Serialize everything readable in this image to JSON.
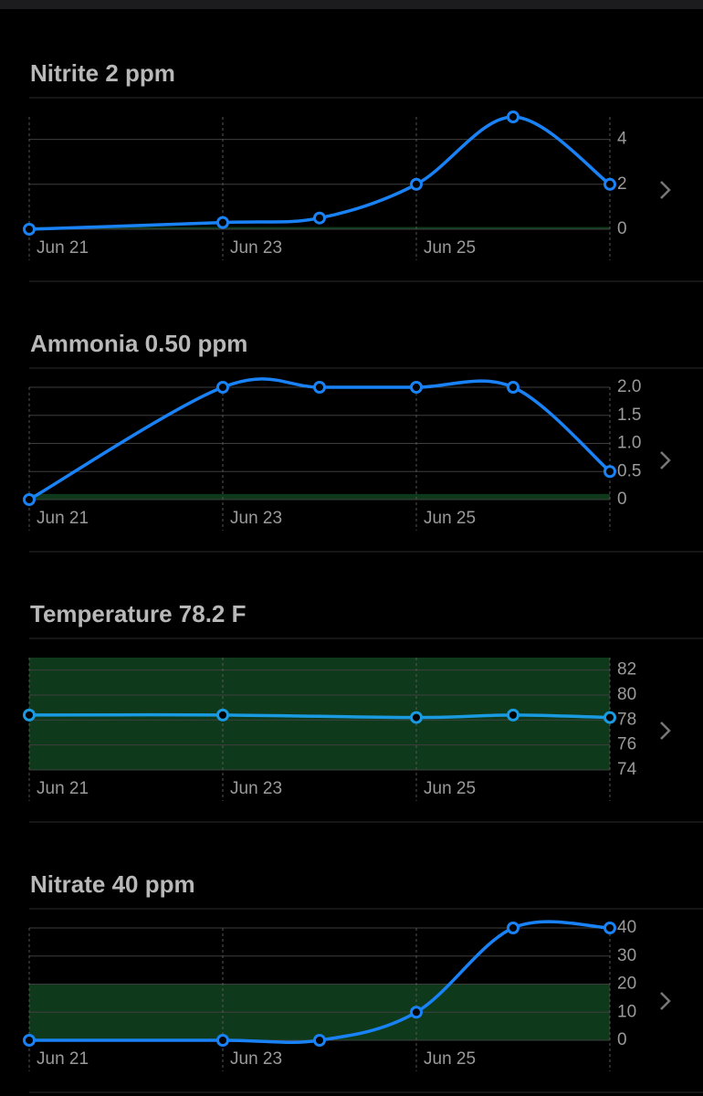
{
  "chart_data": [
    {
      "type": "line",
      "title": "Nitrite 2 ppm",
      "x": [
        "Jun 21",
        "Jun 23",
        "Jun 24",
        "Jun 25",
        "Jun 26",
        "Jun 27"
      ],
      "values": [
        0,
        0.3,
        0.5,
        2,
        5,
        2
      ],
      "color": "#1a82f7",
      "xlim": [
        "Jun 21",
        "Jun 27"
      ],
      "xticks": [
        "Jun 21",
        "Jun 23",
        "Jun 25"
      ],
      "ylim": [
        0,
        5
      ],
      "yticks": [
        0,
        2,
        4
      ],
      "band": [
        0,
        0.1
      ],
      "band_color": "#0e3a1b",
      "grid": true
    },
    {
      "type": "line",
      "title": "Ammonia 0.50 ppm",
      "x": [
        "Jun 21",
        "Jun 23",
        "Jun 24",
        "Jun 25",
        "Jun 26",
        "Jun 27"
      ],
      "values": [
        0,
        2,
        2,
        2,
        2,
        0.5
      ],
      "color": "#1a82f7",
      "xlim": [
        "Jun 21",
        "Jun 27"
      ],
      "xticks": [
        "Jun 21",
        "Jun 23",
        "Jun 25"
      ],
      "ylim": [
        0,
        2
      ],
      "yticks": [
        0,
        0.5,
        {
          "value": 1,
          "label": "1.0"
        },
        1.5,
        {
          "value": 2,
          "label": "2.0"
        }
      ],
      "band": [
        0,
        0.1
      ],
      "band_color": "#0e3a1b",
      "grid": true
    },
    {
      "type": "line",
      "title": "Temperature 78.2 F",
      "x": [
        "Jun 21",
        "Jun 23",
        "Jun 25",
        "Jun 26",
        "Jun 27"
      ],
      "values": [
        78.4,
        78.4,
        78.2,
        78.4,
        78.2
      ],
      "color": "#1a9ae0",
      "xlim": [
        "Jun 21",
        "Jun 27"
      ],
      "xticks": [
        "Jun 21",
        "Jun 23",
        "Jun 25"
      ],
      "ylim": [
        74,
        83
      ],
      "yticks": [
        74,
        76,
        78,
        80,
        82
      ],
      "band": [
        74,
        83
      ],
      "band_color": "#0e3a1b",
      "grid": true
    },
    {
      "type": "line",
      "title": "Nitrate 40 ppm",
      "x": [
        "Jun 21",
        "Jun 23",
        "Jun 24",
        "Jun 25",
        "Jun 26",
        "Jun 27"
      ],
      "values": [
        0,
        0,
        0,
        10,
        40,
        40
      ],
      "color": "#1a82f7",
      "xlim": [
        "Jun 21",
        "Jun 27"
      ],
      "xticks": [
        "Jun 21",
        "Jun 23",
        "Jun 25"
      ],
      "ylim": [
        0,
        40
      ],
      "yticks": [
        0,
        10,
        20,
        30,
        40
      ],
      "band": [
        0,
        20
      ],
      "band_color": "#0e3a1b",
      "grid": true
    }
  ]
}
